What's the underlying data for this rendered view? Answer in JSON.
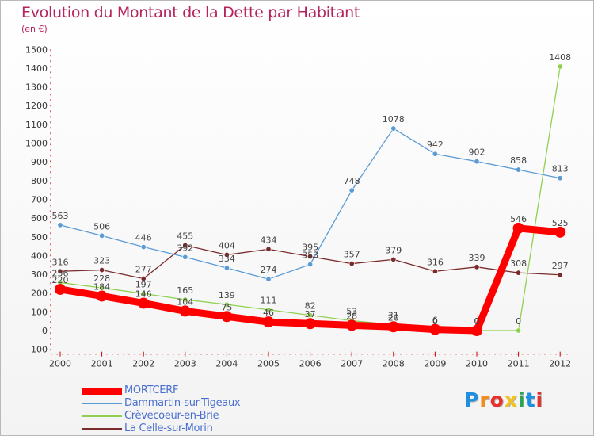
{
  "chart_data": {
    "type": "line",
    "title": "Evolution du Montant de la Dette par Habitant",
    "subtitle": "(en €)",
    "x": [
      "2000",
      "2001",
      "2002",
      "2003",
      "2004",
      "2005",
      "2006",
      "2007",
      "2008",
      "2009",
      "2010",
      "2011",
      "2012"
    ],
    "ylim": [
      -100,
      1500
    ],
    "yticks": [
      -100,
      0,
      100,
      200,
      300,
      400,
      500,
      600,
      700,
      800,
      900,
      1000,
      1100,
      1200,
      1300,
      1400,
      1500
    ],
    "grid": false,
    "legend_position": "bottom-left",
    "series": [
      {
        "name": "MORTCERF",
        "color": "#ff0000",
        "values": [
          220,
          184,
          146,
          104,
          75,
          46,
          37,
          28,
          20,
          6,
          0,
          546,
          525
        ],
        "labels": [
          "220",
          "184",
          "146",
          "104",
          "75",
          "46",
          "37",
          "28",
          "20",
          "6",
          "0",
          "546",
          "525"
        ]
      },
      {
        "name": "Dammartin-sur-Tigeaux",
        "color": "#5b9bd5",
        "values": [
          563,
          506,
          446,
          392,
          334,
          274,
          353,
          748,
          1078,
          942,
          902,
          858,
          813
        ],
        "labels": [
          "563",
          "506",
          "446",
          "392",
          "334",
          "274",
          "353",
          "748",
          "1078",
          "942",
          "902",
          "858",
          "813"
        ]
      },
      {
        "name": "Crèvecoeur-en-Brie",
        "color": "#8fd14f",
        "values": [
          256,
          228,
          197,
          165,
          139,
          111,
          82,
          53,
          31,
          0,
          0,
          0,
          1408
        ],
        "labels": [
          "256",
          "228",
          "197",
          "165",
          "139",
          "111",
          "82",
          "53",
          "31",
          "0",
          "0",
          "0",
          "1408"
        ]
      },
      {
        "name": "La Celle-sur-Morin",
        "color": "#7b2b2b",
        "values": [
          316,
          323,
          277,
          455,
          404,
          434,
          395,
          357,
          379,
          316,
          339,
          308,
          297
        ],
        "labels": [
          "316",
          "323",
          "277",
          "455",
          "404",
          "434",
          "395",
          "357",
          "379",
          "316",
          "339",
          "308",
          "297"
        ]
      }
    ]
  },
  "logo": {
    "letters": [
      "P",
      "r",
      "o",
      "x",
      "i",
      "t",
      "i"
    ],
    "colors": [
      "#1f8fe0",
      "#f28c1e",
      "#e8302f",
      "#f2c31e",
      "#26a64d",
      "#1f8fe0",
      "#e8302f"
    ]
  }
}
